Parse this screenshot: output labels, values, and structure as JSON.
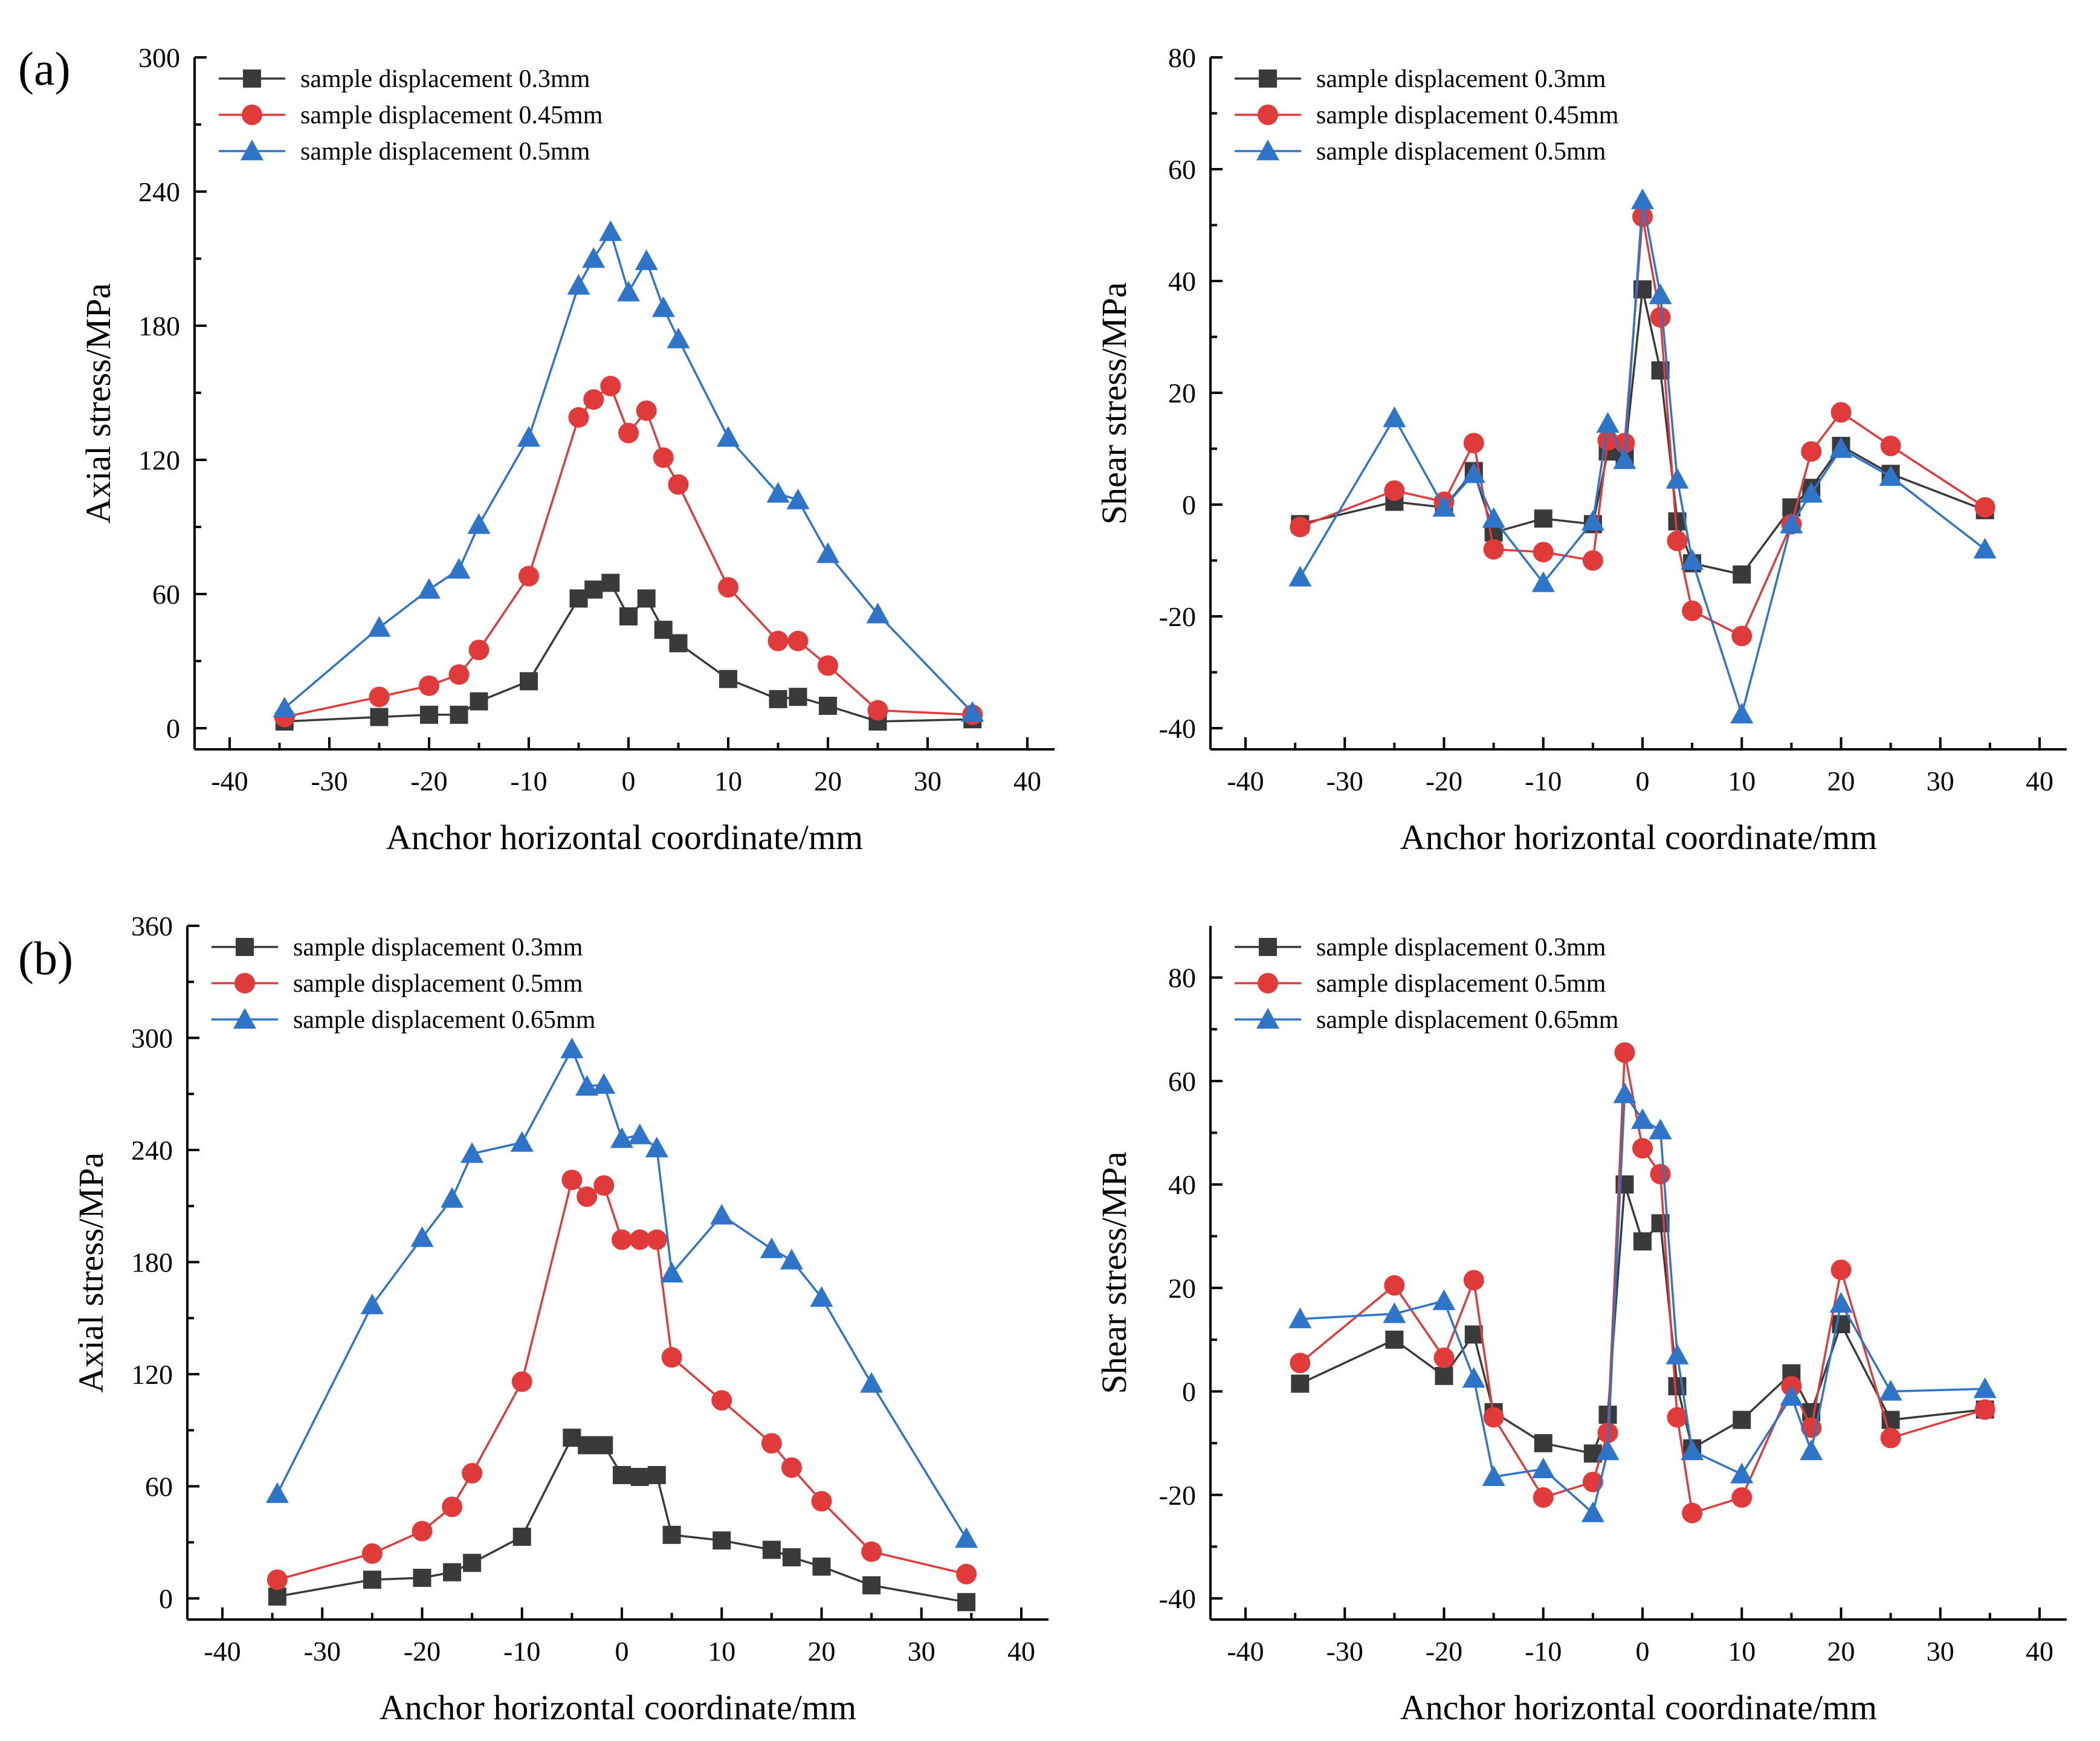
{
  "figure": {
    "panel_labels": [
      "(a)",
      "(b)"
    ]
  },
  "colors": {
    "black": "#3a3a3a",
    "red": "#e03a3a",
    "blue": "#2e74c8"
  },
  "chart_data": [
    {
      "type": "line",
      "panel": "(a)",
      "xlabel": "Anchor horizontal coordinate/mm",
      "ylabel": "Axial stress/MPa",
      "xlim": [
        -40,
        40
      ],
      "ylim": [
        0,
        300
      ],
      "xticks": [
        -40,
        -30,
        -20,
        -10,
        0,
        10,
        20,
        30,
        40
      ],
      "yticks": [
        0,
        60,
        120,
        180,
        240,
        300
      ],
      "series": [
        {
          "name": "sample displacement 0.3mm",
          "color": "#3a3a3a",
          "marker": "square",
          "x": [
            -34.5,
            -25,
            -20,
            -17,
            -15,
            -10,
            -5,
            -3.5,
            -1.8,
            0,
            1.8,
            3.5,
            5,
            10,
            15,
            17,
            20,
            25,
            34.5
          ],
          "y": [
            3,
            5,
            6,
            6,
            12,
            21,
            58,
            62,
            65,
            50,
            58,
            44,
            38,
            22,
            13,
            14,
            10,
            3,
            4
          ]
        },
        {
          "name": "sample displacement 0.45mm",
          "color": "#e03a3a",
          "marker": "circle",
          "x": [
            -34.5,
            -25,
            -20,
            -17,
            -15,
            -10,
            -5,
            -3.5,
            -1.8,
            0,
            1.8,
            3.5,
            5,
            10,
            15,
            17,
            20,
            25,
            34.5
          ],
          "y": [
            5,
            14,
            19,
            24,
            35,
            68,
            139,
            147,
            153,
            132,
            142,
            121,
            109,
            63,
            39,
            39,
            28,
            8,
            6
          ]
        },
        {
          "name": "sample displacement 0.5mm",
          "color": "#2e74c8",
          "marker": "triangle",
          "x": [
            -34.5,
            -25,
            -20,
            -17,
            -15,
            -10,
            -5,
            -3.5,
            -1.8,
            0,
            1.8,
            3.5,
            5,
            10,
            15,
            17,
            20,
            25,
            34.5
          ],
          "y": [
            9,
            45,
            62,
            71,
            91,
            130,
            198,
            210,
            222,
            195,
            209,
            188,
            174,
            130,
            105,
            102,
            78,
            51,
            7
          ]
        }
      ]
    },
    {
      "type": "line",
      "panel": "(a)",
      "xlabel": "Anchor horizontal coordinate/mm",
      "ylabel": "Shear stress/MPa",
      "xlim": [
        -40,
        40
      ],
      "ylim": [
        -40,
        80
      ],
      "xticks": [
        -40,
        -30,
        -20,
        -10,
        0,
        10,
        20,
        30,
        40
      ],
      "yticks": [
        -40,
        -20,
        0,
        20,
        40,
        60,
        80
      ],
      "series": [
        {
          "name": "sample displacement 0.3mm",
          "color": "#3a3a3a",
          "marker": "square",
          "x": [
            -34.5,
            -25,
            -20,
            -17,
            -15,
            -10,
            -5,
            -3.5,
            -1.8,
            0,
            1.8,
            3.5,
            5,
            10,
            15,
            17,
            20,
            25,
            34.5
          ],
          "y": [
            -3.5,
            0.5,
            -0.5,
            6,
            -5,
            -2.5,
            -3.5,
            9.5,
            8.5,
            38.5,
            24,
            -3,
            -10.5,
            -12.5,
            -0.5,
            3,
            10.5,
            5.5,
            -1
          ]
        },
        {
          "name": "sample displacement 0.45mm",
          "color": "#e03a3a",
          "marker": "circle",
          "x": [
            -34.5,
            -25,
            -20,
            -17,
            -15,
            -10,
            -5,
            -3.5,
            -1.8,
            0,
            1.8,
            3.5,
            5,
            10,
            15,
            17,
            20,
            25,
            34.5
          ],
          "y": [
            -4,
            2.5,
            0.5,
            11,
            -8,
            -8.5,
            -10,
            11.5,
            11,
            51.5,
            33.5,
            -6.5,
            -19,
            -23.5,
            -3.5,
            9.5,
            16.5,
            10.5,
            -0.5
          ]
        },
        {
          "name": "sample displacement 0.5mm",
          "color": "#2e74c8",
          "marker": "triangle",
          "x": [
            -34.5,
            -25,
            -20,
            -17,
            -15,
            -10,
            -5,
            -3.5,
            -1.8,
            0,
            1.8,
            3.5,
            5,
            10,
            15,
            17,
            20,
            25,
            34.5
          ],
          "y": [
            -13,
            15.5,
            -0.5,
            5.5,
            -2.5,
            -14,
            -3,
            14.5,
            8,
            54.5,
            37.5,
            4.5,
            -10,
            -37.5,
            -3.5,
            2,
            10,
            5,
            -8
          ]
        }
      ]
    },
    {
      "type": "line",
      "panel": "(b)",
      "xlabel": "Anchor horizontal coordinate/mm",
      "ylabel": "Axial stress/MPa",
      "xlim": [
        -40,
        40
      ],
      "ylim": [
        0,
        360
      ],
      "xticks": [
        -40,
        -30,
        -20,
        -10,
        0,
        10,
        20,
        30,
        40
      ],
      "yticks": [
        0,
        60,
        120,
        180,
        240,
        300,
        360
      ],
      "series": [
        {
          "name": "sample displacement 0.3mm",
          "color": "#3a3a3a",
          "marker": "square",
          "x": [
            -34.5,
            -25,
            -20,
            -17,
            -15,
            -10,
            -5,
            -3.5,
            -1.8,
            0,
            1.8,
            3.5,
            5,
            10,
            15,
            17,
            20,
            25,
            34.5
          ],
          "y": [
            1,
            10,
            11,
            14,
            19,
            33,
            86,
            82,
            82,
            66,
            65,
            66,
            34,
            31,
            26,
            22,
            17,
            7,
            -2
          ]
        },
        {
          "name": "sample displacement 0.5mm",
          "color": "#e03a3a",
          "marker": "circle",
          "x": [
            -34.5,
            -25,
            -20,
            -17,
            -15,
            -10,
            -5,
            -3.5,
            -1.8,
            0,
            1.8,
            3.5,
            5,
            10,
            15,
            17,
            20,
            25,
            34.5
          ],
          "y": [
            10,
            24,
            36,
            49,
            67,
            116,
            224,
            215,
            221,
            192,
            192,
            192,
            129,
            106,
            83,
            70,
            52,
            25,
            13
          ]
        },
        {
          "name": "sample displacement 0.65mm",
          "color": "#2e74c8",
          "marker": "triangle",
          "x": [
            -34.5,
            -25,
            -20,
            -17,
            -15,
            -10,
            -5,
            -3.5,
            -1.8,
            0,
            1.8,
            3.5,
            5,
            10,
            15,
            17,
            20,
            25,
            34.5
          ],
          "y": [
            56,
            157,
            193,
            214,
            238,
            244,
            294,
            274,
            275,
            246,
            248,
            241,
            174,
            205,
            187,
            181,
            161,
            115,
            32
          ]
        }
      ]
    },
    {
      "type": "line",
      "panel": "(b)",
      "xlabel": "Anchor horizontal coordinate/mm",
      "ylabel": "Shear stress/MPa",
      "xlim": [
        -40,
        40
      ],
      "ylim": [
        -40,
        90
      ],
      "xticks": [
        -40,
        -30,
        -20,
        -10,
        0,
        10,
        20,
        30,
        40
      ],
      "yticks": [
        -40,
        -20,
        0,
        20,
        40,
        60,
        80
      ],
      "series": [
        {
          "name": "sample displacement 0.3mm",
          "color": "#3a3a3a",
          "marker": "square",
          "x": [
            -34.5,
            -25,
            -20,
            -17,
            -15,
            -10,
            -5,
            -3.5,
            -1.8,
            0,
            1.8,
            3.5,
            5,
            10,
            15,
            17,
            20,
            25,
            34.5
          ],
          "y": [
            1.5,
            10,
            3,
            11,
            -4,
            -10,
            -12,
            -4.5,
            40,
            29,
            32.5,
            1,
            -11,
            -5.5,
            3.5,
            -4,
            13,
            -5.5,
            -3.5
          ]
        },
        {
          "name": "sample displacement 0.5mm",
          "color": "#e03a3a",
          "marker": "circle",
          "x": [
            -34.5,
            -25,
            -20,
            -17,
            -15,
            -10,
            -5,
            -3.5,
            -1.8,
            0,
            1.8,
            3.5,
            5,
            10,
            15,
            17,
            20,
            25,
            34.5
          ],
          "y": [
            5.5,
            20.5,
            6.5,
            21.5,
            -5,
            -20.5,
            -17.5,
            -8,
            65.5,
            47,
            42,
            -5,
            -23.5,
            -20.5,
            1,
            -7,
            23.5,
            -9,
            -3.5
          ]
        },
        {
          "name": "sample displacement 0.65mm",
          "color": "#2e74c8",
          "marker": "triangle",
          "x": [
            -34.5,
            -25,
            -20,
            -17,
            -15,
            -10,
            -5,
            -3.5,
            -1.8,
            0,
            1.8,
            3.5,
            5,
            10,
            15,
            17,
            20,
            25,
            34.5
          ],
          "y": [
            14,
            15,
            17.5,
            2.5,
            -16.5,
            -15,
            -23.5,
            -11.5,
            57.5,
            52.5,
            50.5,
            7,
            -11.5,
            -16,
            -1,
            -11.5,
            17,
            0,
            0.5
          ]
        }
      ]
    }
  ]
}
